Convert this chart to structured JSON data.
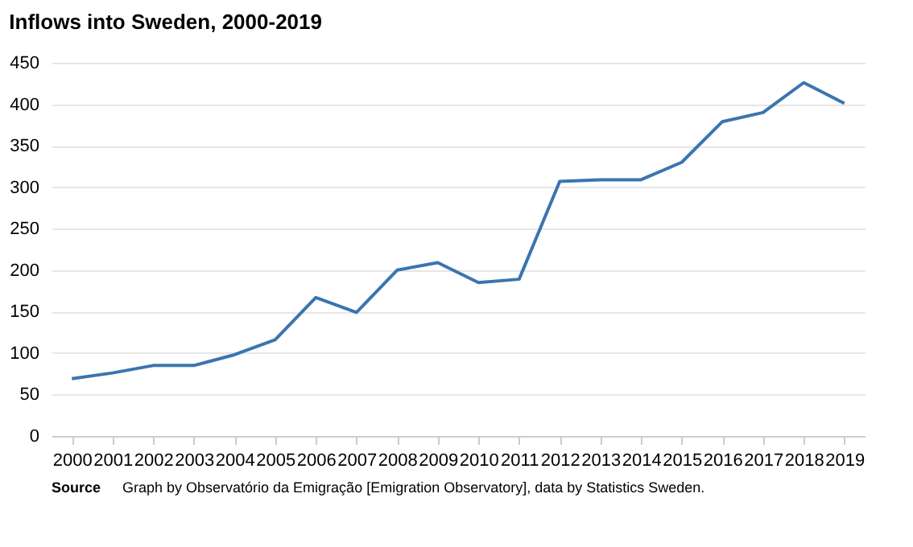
{
  "chart_data": {
    "type": "line",
    "title": "Inflows into Sweden, 2000-2019",
    "categories": [
      "2000",
      "2001",
      "2002",
      "2003",
      "2004",
      "2005",
      "2006",
      "2007",
      "2008",
      "2009",
      "2010",
      "2011",
      "2012",
      "2013",
      "2014",
      "2015",
      "2016",
      "2017",
      "2018",
      "2019"
    ],
    "series": [
      {
        "color": "#3b75af",
        "values": [
          69,
          76,
          85,
          85,
          98,
          116,
          167,
          149,
          200,
          209,
          185,
          189,
          307,
          309,
          309,
          330,
          379,
          390,
          426,
          401
        ]
      }
    ],
    "ylim": [
      0,
      450
    ],
    "yticks": [
      0,
      50,
      100,
      150,
      200,
      250,
      300,
      350,
      400,
      450
    ],
    "grid": "y",
    "marker": "none",
    "line_style": "solid",
    "annotations": [
      "Source  Graph by Observatório da Emigração [Emigration Observatory], data by Statistics Sweden."
    ]
  }
}
